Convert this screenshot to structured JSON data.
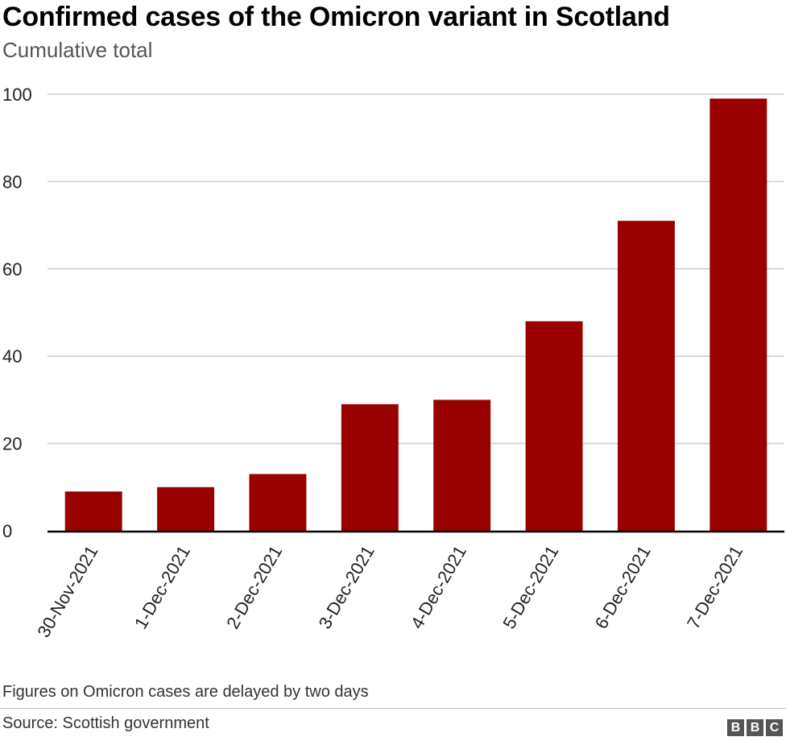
{
  "header": {
    "title": "Confirmed cases of the Omicron variant in Scotland",
    "subtitle": "Cumulative total"
  },
  "footer": {
    "note": "Figures on Omicron cases are delayed by two days",
    "source": "Source: Scottish government",
    "logo_letters": [
      "B",
      "B",
      "C"
    ]
  },
  "colors": {
    "bar": "#990000",
    "grid": "#cccccc",
    "axis": "#000000"
  },
  "chart_data": {
    "type": "bar",
    "title": "Confirmed cases of the Omicron variant in Scotland",
    "subtitle": "Cumulative total",
    "categories": [
      "30-Nov-2021",
      "1-Dec-2021",
      "2-Dec-2021",
      "3-Dec-2021",
      "4-Dec-2021",
      "5-Dec-2021",
      "6-Dec-2021",
      "7-Dec-2021"
    ],
    "values": [
      9,
      10,
      13,
      29,
      30,
      48,
      71,
      99
    ],
    "ylim": [
      0,
      100
    ],
    "yticks": [
      0,
      20,
      40,
      60,
      80,
      100
    ],
    "grid": true
  }
}
